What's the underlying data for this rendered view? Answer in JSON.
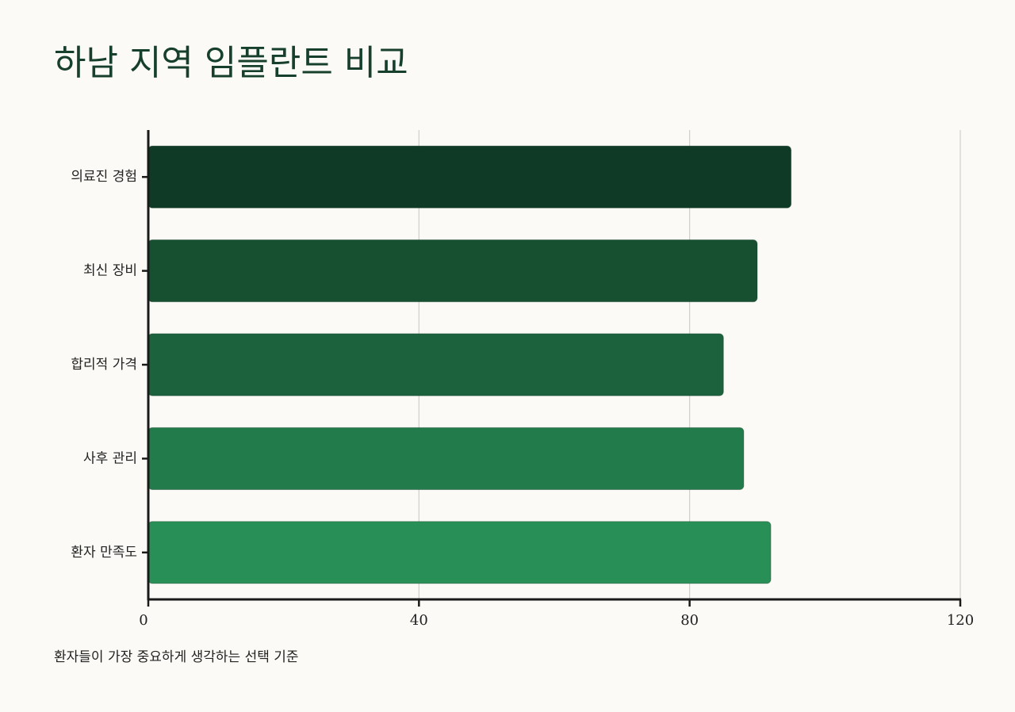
{
  "chart_data": {
    "type": "bar",
    "orientation": "horizontal",
    "title": "하남 지역 임플란트 비교",
    "caption": "환자들이 가장 중요하게 생각하는 선택 기준",
    "xlabel": "",
    "ylabel": "",
    "categories": [
      "의료진 경험",
      "최신 장비",
      "합리적 가격",
      "사후 관리",
      "환자 만족도"
    ],
    "values": [
      95,
      90,
      85,
      88,
      92
    ],
    "xlim": [
      0,
      120
    ],
    "xticks": [
      "0",
      "40",
      "80",
      "120"
    ],
    "grid": "vertical",
    "legend": "none",
    "colors": [
      "#0f3b26",
      "#174f31",
      "#1c623d",
      "#227b4a",
      "#288f56"
    ]
  }
}
